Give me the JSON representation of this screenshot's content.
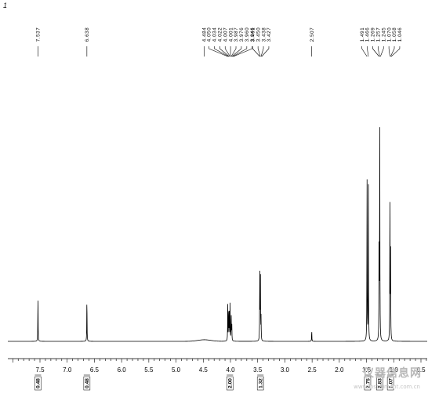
{
  "page_label": "1",
  "chart_data": {
    "type": "line",
    "title": "",
    "xlabel": "",
    "ylabel": "",
    "x_reversed": true,
    "xlim": [
      0.4,
      8.0
    ],
    "x_ticks": [
      "7.5",
      "7.0",
      "6.5",
      "6.0",
      "5.5",
      "5.0",
      "4.5",
      "4.0",
      "3.5",
      "3.0",
      "2.5",
      "2.0",
      "1.5",
      "1.0",
      "0.5"
    ],
    "y_relative_max": 1.0,
    "peaks": [
      {
        "ppm": 7.537,
        "height": 0.2
      },
      {
        "ppm": 6.638,
        "height": 0.2
      },
      {
        "ppm": 4.05,
        "height": 0.16
      },
      {
        "ppm": 4.034,
        "height": 0.155
      },
      {
        "ppm": 4.022,
        "height": 0.12
      },
      {
        "ppm": 4.007,
        "height": 0.16
      },
      {
        "ppm": 3.987,
        "height": 0.13
      },
      {
        "ppm": 3.976,
        "height": 0.08
      },
      {
        "ppm": 3.461,
        "height": 0.33
      },
      {
        "ppm": 3.45,
        "height": 0.3
      },
      {
        "ppm": 3.438,
        "height": 0.1
      },
      {
        "ppm": 2.507,
        "height": 0.05
      },
      {
        "ppm": 1.491,
        "height": 0.75
      },
      {
        "ppm": 1.466,
        "height": 0.76
      },
      {
        "ppm": 1.269,
        "height": 0.52
      },
      {
        "ppm": 1.257,
        "height": 0.99
      },
      {
        "ppm": 1.07,
        "height": 0.67
      },
      {
        "ppm": 1.058,
        "height": 0.38
      }
    ],
    "peak_labels": [
      {
        "text": "7.537",
        "ppm": 7.537
      },
      {
        "text": "6.638",
        "ppm": 6.638
      },
      {
        "text": "4.484",
        "ppm": 4.484
      },
      {
        "text": "4.050",
        "ppm": 4.05
      },
      {
        "text": "4.034",
        "ppm": 4.034
      },
      {
        "text": "4.022",
        "ppm": 4.022
      },
      {
        "text": "4.007",
        "ppm": 4.007
      },
      {
        "text": "4.001",
        "ppm": 4.001
      },
      {
        "text": "3.987",
        "ppm": 3.987
      },
      {
        "text": "3.976",
        "ppm": 3.976
      },
      {
        "text": "3.960",
        "ppm": 3.96
      },
      {
        "text": "3.946",
        "ppm": 3.946
      },
      {
        "text": "3.461",
        "ppm": 3.461
      },
      {
        "text": "3.450",
        "ppm": 3.45
      },
      {
        "text": "3.438",
        "ppm": 3.438
      },
      {
        "text": "3.427",
        "ppm": 3.427
      },
      {
        "text": "2.507",
        "ppm": 2.507
      },
      {
        "text": "1.491",
        "ppm": 1.491
      },
      {
        "text": "1.466",
        "ppm": 1.466
      },
      {
        "text": "1.269",
        "ppm": 1.269
      },
      {
        "text": "1.257",
        "ppm": 1.257
      },
      {
        "text": "1.245",
        "ppm": 1.245
      },
      {
        "text": "1.070",
        "ppm": 1.07
      },
      {
        "text": "1.058",
        "ppm": 1.058
      },
      {
        "text": "1.046",
        "ppm": 1.046
      }
    ],
    "integrals": [
      {
        "value": "0.48",
        "ppm": 7.537
      },
      {
        "value": "0.48",
        "ppm": 6.638
      },
      {
        "value": "2.00",
        "ppm": 4.01
      },
      {
        "value": "1.32",
        "ppm": 3.45
      },
      {
        "value": "2.75",
        "ppm": 1.48
      },
      {
        "value": "2.83",
        "ppm": 1.26
      },
      {
        "value": "1.07",
        "ppm": 1.06
      }
    ],
    "colors": {
      "line": "#000000",
      "background": "#ffffff"
    }
  },
  "watermark": {
    "text": "仪器信息网",
    "sub": "www.instrument.com.cn"
  }
}
